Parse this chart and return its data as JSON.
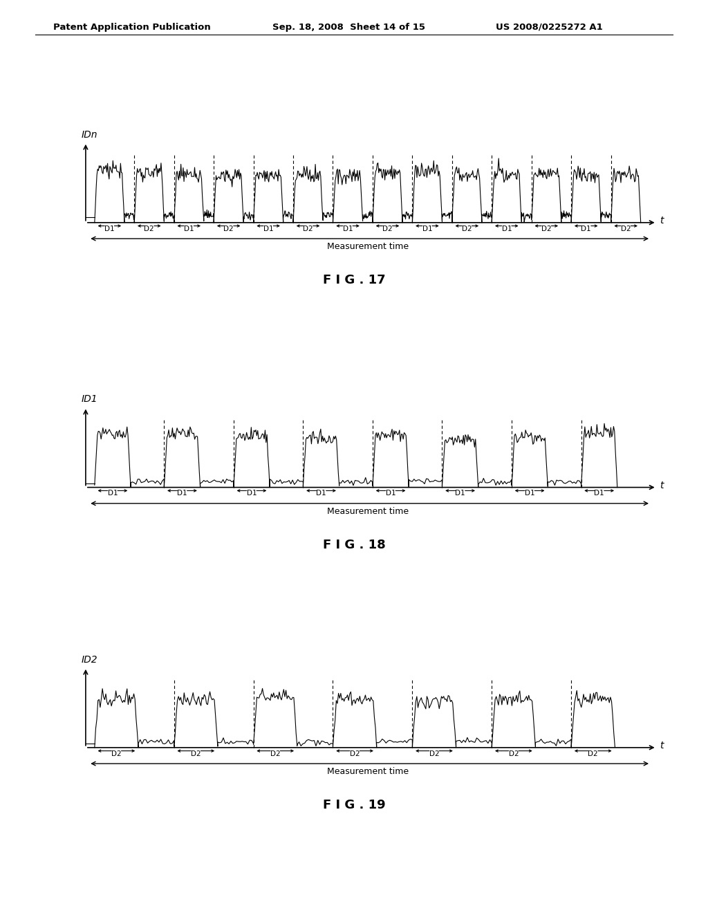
{
  "header_left": "Patent Application Publication",
  "header_mid": "Sep. 18, 2008  Sheet 14 of 15",
  "header_right": "US 2008/0225272 A1",
  "fig17_label": "F I G . 17",
  "fig18_label": "F I G . 18",
  "fig19_label": "F I G . 19",
  "fig17_ylabel": "IDn",
  "fig18_ylabel": "ID1",
  "fig19_ylabel": "ID2",
  "xlabel": "t",
  "measurement_time": "Measurement time",
  "background_color": "#ffffff",
  "line_color": "#000000",
  "fig17_d_labels": [
    "D1",
    "D2",
    "D1",
    "D2",
    "D1",
    "D2",
    "D1",
    "D2",
    "D1",
    "D2",
    "D1",
    "D2",
    "D1",
    "D2"
  ],
  "fig18_d_labels": [
    "D1",
    "D1",
    "D1",
    "D1",
    "D1",
    "D1",
    "D1",
    "D1"
  ],
  "fig19_d_labels": [
    "D2",
    "D2",
    "D2",
    "D2",
    "D2",
    "D2",
    "D2"
  ]
}
